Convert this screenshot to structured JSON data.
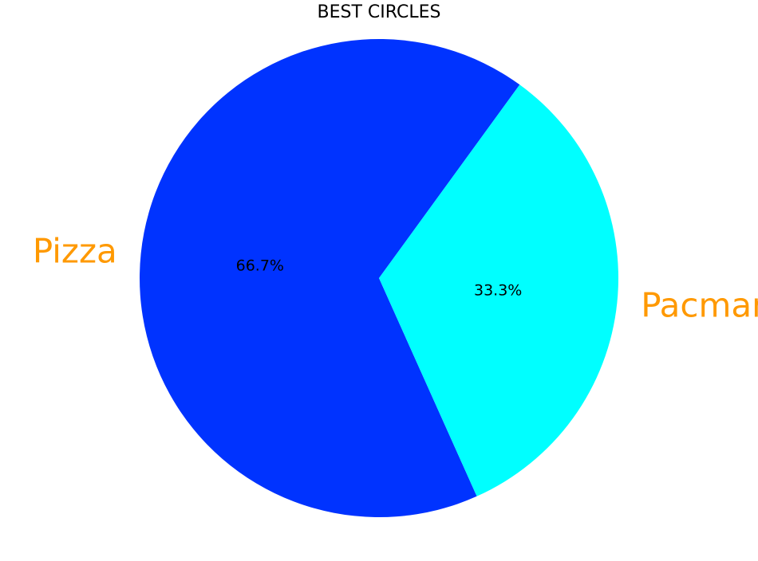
{
  "chart_data": {
    "type": "pie",
    "title": "BEST CIRCLES",
    "categories": [
      "Pizza",
      "Pacman"
    ],
    "values": [
      66.7,
      33.3
    ],
    "labels": [
      "66.7%",
      "33.3%"
    ],
    "colors": [
      "#0033ff",
      "#00ffff"
    ],
    "label_color": "#ff9900",
    "pct_color": "#000000",
    "legend": "none"
  }
}
